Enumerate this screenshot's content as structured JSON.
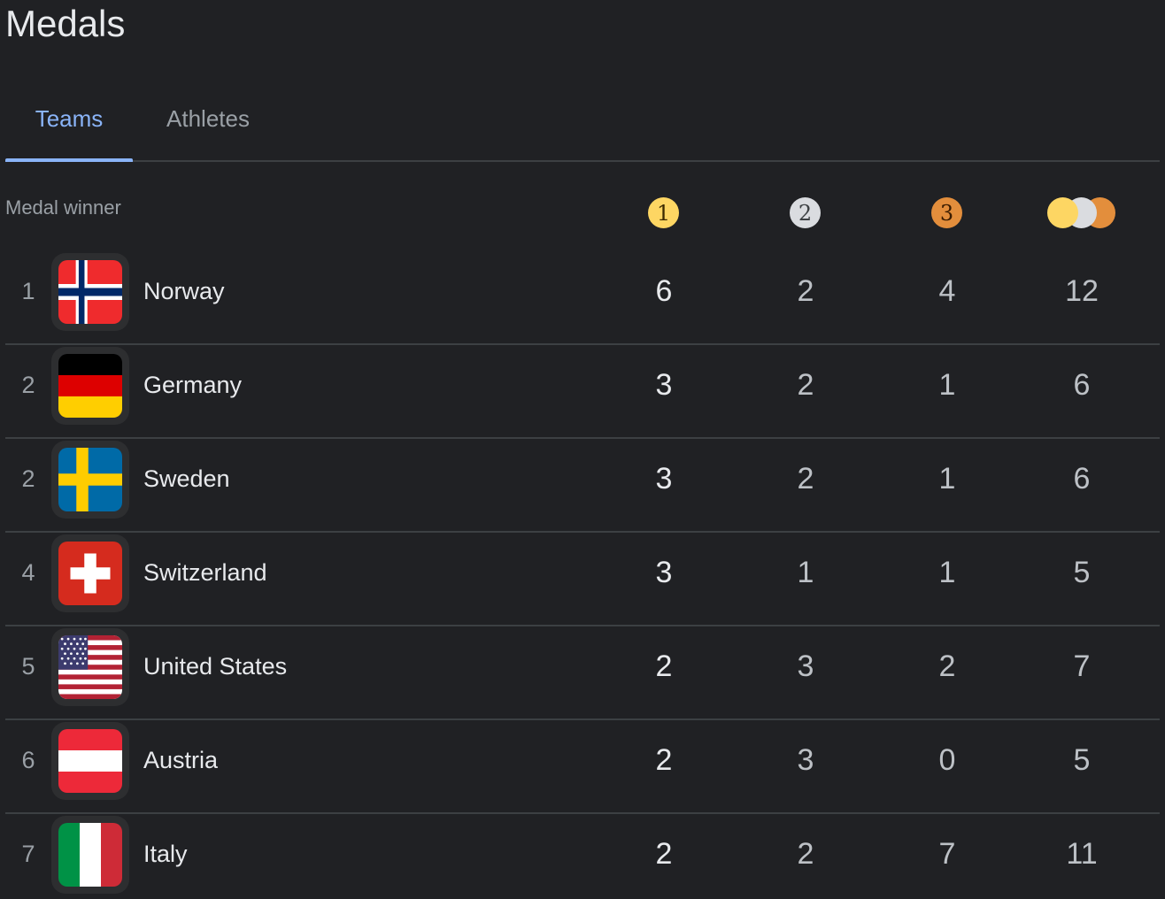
{
  "title": "Medals",
  "tabs": [
    {
      "label": "Teams",
      "active": true
    },
    {
      "label": "Athletes",
      "active": false
    }
  ],
  "table": {
    "header_label": "Medal winner",
    "medal_icons": [
      {
        "icon": "gold-medal-icon",
        "label": "1",
        "color": "#fdd663"
      },
      {
        "icon": "silver-medal-icon",
        "label": "2",
        "color": "#dadce0"
      },
      {
        "icon": "bronze-medal-icon",
        "label": "3",
        "color": "#e38e3c"
      },
      {
        "icon": "total-medals-icon"
      }
    ],
    "rows": [
      {
        "rank": "1",
        "country": "Norway",
        "flag": "norway-flag-icon",
        "gold": "6",
        "silver": "2",
        "bronze": "4",
        "total": "12"
      },
      {
        "rank": "2",
        "country": "Germany",
        "flag": "germany-flag-icon",
        "gold": "3",
        "silver": "2",
        "bronze": "1",
        "total": "6"
      },
      {
        "rank": "2",
        "country": "Sweden",
        "flag": "sweden-flag-icon",
        "gold": "3",
        "silver": "2",
        "bronze": "1",
        "total": "6"
      },
      {
        "rank": "4",
        "country": "Switzerland",
        "flag": "switzerland-flag-icon",
        "gold": "3",
        "silver": "1",
        "bronze": "1",
        "total": "5"
      },
      {
        "rank": "5",
        "country": "United States",
        "flag": "united-states-flag-icon",
        "gold": "2",
        "silver": "3",
        "bronze": "2",
        "total": "7"
      },
      {
        "rank": "6",
        "country": "Austria",
        "flag": "austria-flag-icon",
        "gold": "2",
        "silver": "3",
        "bronze": "0",
        "total": "5"
      },
      {
        "rank": "7",
        "country": "Italy",
        "flag": "italy-flag-icon",
        "gold": "2",
        "silver": "2",
        "bronze": "7",
        "total": "11"
      }
    ]
  },
  "colors": {
    "background": "#202124",
    "accent": "#8ab4f8",
    "divider": "#3c4043",
    "gold": "#fdd663",
    "silver": "#dadce0",
    "bronze": "#e38e3c"
  }
}
